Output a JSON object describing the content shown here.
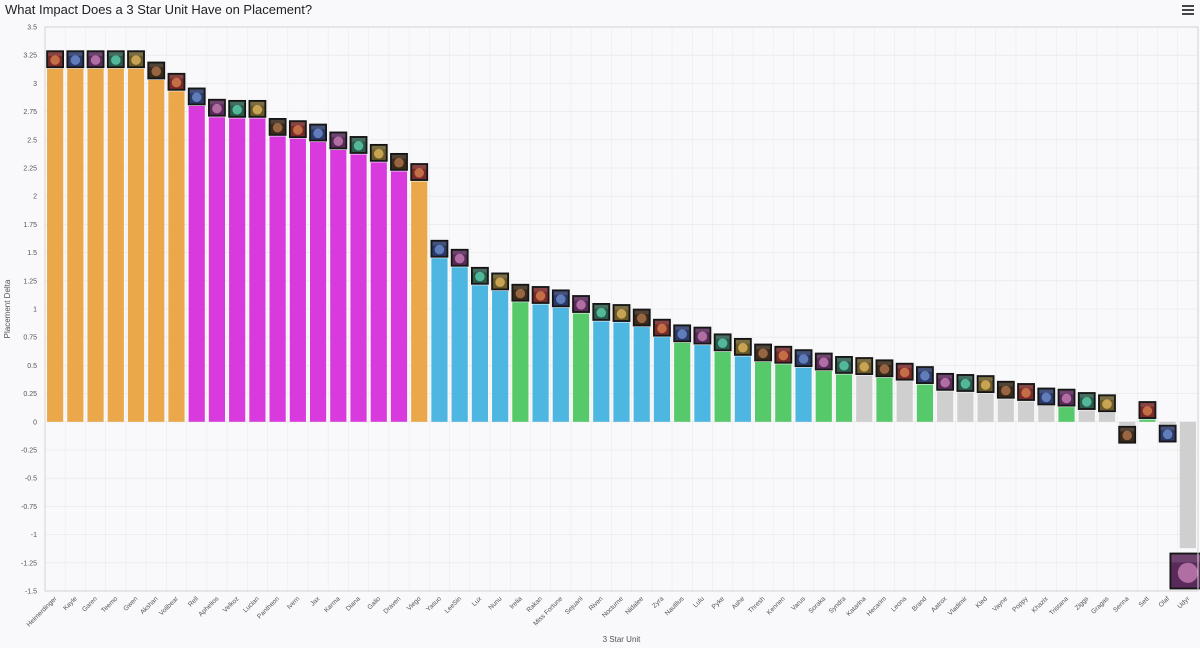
{
  "header": {
    "title": "What Impact Does a 3 Star Unit Have on Placement?",
    "menu_icon": "hamburger-menu-icon"
  },
  "chart_data": {
    "type": "bar",
    "title": "What Impact Does a 3 Star Unit Have on Placement?",
    "xlabel": "3 Star Unit",
    "ylabel": "Placement Delta",
    "ylim": [
      -1.5,
      3.5
    ],
    "y_ticks": [
      "3.5",
      "3.25",
      "3",
      "2.75",
      "2.5",
      "2.25",
      "2",
      "1.75",
      "1.5",
      "1.25",
      "1",
      "0.75",
      "0.5",
      "0.25",
      "0",
      "-0.25",
      "-0.5",
      "-0.75",
      "-1",
      "-1.25",
      "-1.5"
    ],
    "grid": true,
    "legend": "none",
    "colors": {
      "orange": "#eba84a",
      "magenta": "#d93ade",
      "blue": "#4db7e1",
      "green": "#56c96a",
      "gray": "#cfcfcf"
    },
    "categories": [
      "Heimerdinger",
      "Kayle",
      "Garen",
      "Teemo",
      "Gwen",
      "Akshan",
      "Volibear",
      "Rell",
      "Aphelios",
      "Velkoz",
      "Lucian",
      "Pantheon",
      "Ivern",
      "Jax",
      "Karma",
      "Diana",
      "Galio",
      "Draven",
      "Viego",
      "Yasuo",
      "LeeSin",
      "Lux",
      "Nunu",
      "Irelia",
      "Rakan",
      "Miss Fortune",
      "Sejuani",
      "Riven",
      "Nocturne",
      "Nidalee",
      "Zyra",
      "Nautilus",
      "Lulu",
      "Pyke",
      "Ashe",
      "Thresh",
      "Kennen",
      "Varus",
      "Soraka",
      "Syndra",
      "Katarina",
      "Hecarim",
      "Leona",
      "Brand",
      "Aatrox",
      "Vladimir",
      "Kled",
      "Vayne",
      "Poppy",
      "Khazix",
      "Tristana",
      "Ziggs",
      "Gragas",
      "Senna",
      "Sett",
      "Olaf",
      "Udyr"
    ],
    "values": [
      3.13,
      3.13,
      3.13,
      3.13,
      3.13,
      3.03,
      2.93,
      2.8,
      2.7,
      2.69,
      2.69,
      2.53,
      2.51,
      2.48,
      2.41,
      2.37,
      2.3,
      2.22,
      2.13,
      1.45,
      1.37,
      1.21,
      1.16,
      1.06,
      1.04,
      1.01,
      0.96,
      0.89,
      0.88,
      0.84,
      0.75,
      0.7,
      0.68,
      0.62,
      0.58,
      0.53,
      0.51,
      0.48,
      0.45,
      0.42,
      0.41,
      0.39,
      0.36,
      0.33,
      0.27,
      0.26,
      0.25,
      0.2,
      0.18,
      0.14,
      0.13,
      0.1,
      0.08,
      -0.03,
      0.02,
      -0.02,
      -1.12
    ],
    "bar_colors": [
      "orange",
      "orange",
      "orange",
      "orange",
      "orange",
      "orange",
      "orange",
      "magenta",
      "magenta",
      "magenta",
      "magenta",
      "magenta",
      "magenta",
      "magenta",
      "magenta",
      "magenta",
      "magenta",
      "magenta",
      "orange",
      "blue",
      "blue",
      "blue",
      "blue",
      "green",
      "blue",
      "blue",
      "green",
      "blue",
      "blue",
      "blue",
      "blue",
      "green",
      "blue",
      "green",
      "blue",
      "green",
      "green",
      "blue",
      "green",
      "green",
      "gray",
      "green",
      "gray",
      "green",
      "gray",
      "gray",
      "gray",
      "gray",
      "gray",
      "gray",
      "green",
      "gray",
      "gray",
      "gray",
      "green",
      "gray",
      "gray"
    ]
  }
}
